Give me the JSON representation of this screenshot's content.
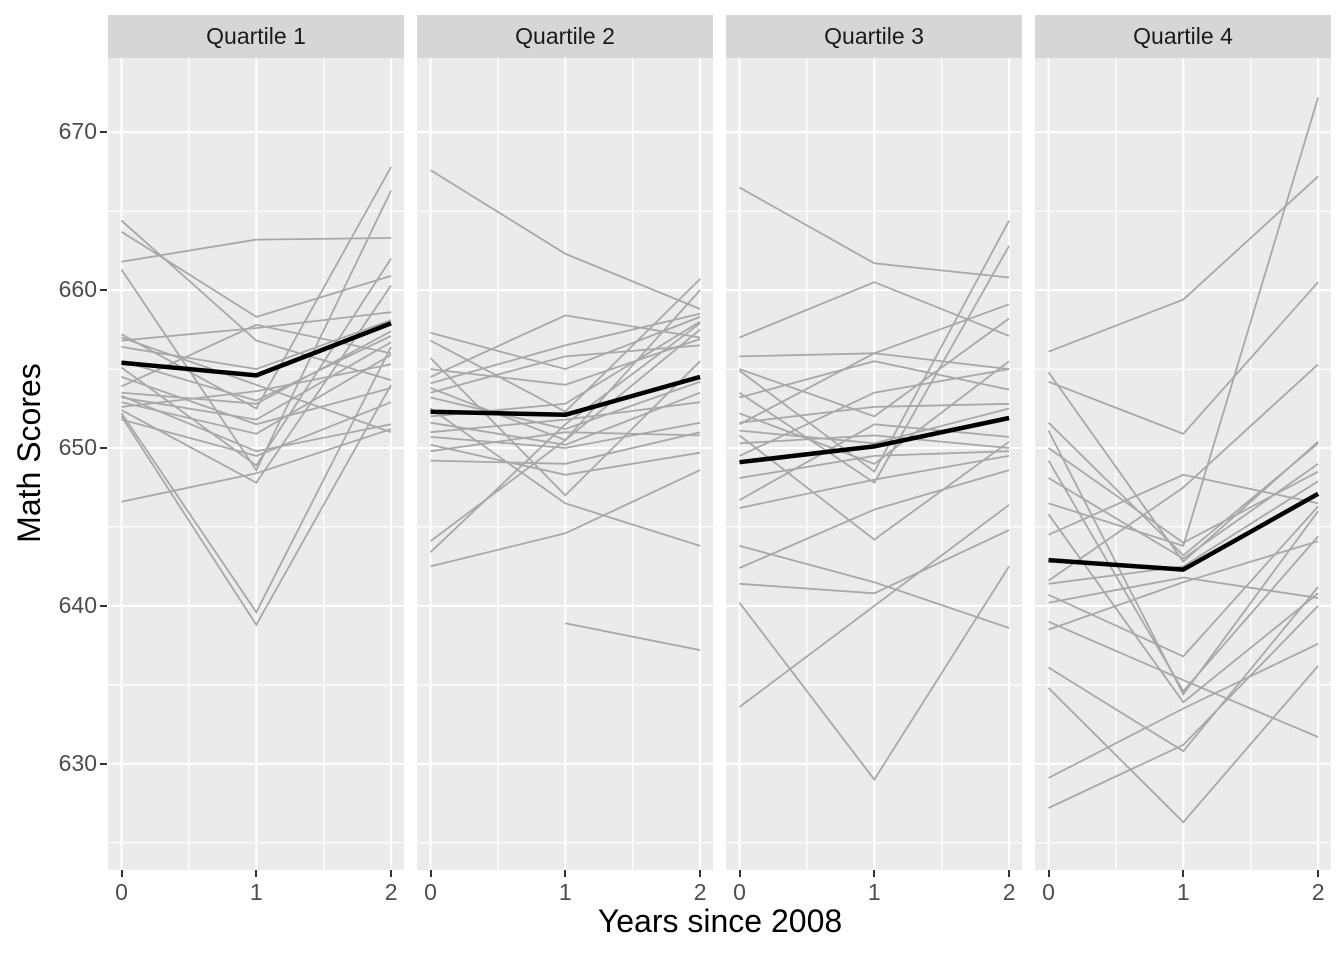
{
  "figure": {
    "background": "#ffffff",
    "panel_bg": "#ebebeb",
    "strip_bg": "#d6d6d6",
    "grid_color": "#ffffff",
    "trajectory_color": "#a8a8a8",
    "mean_color": "#000000",
    "tick_label_color": "#4d4d4d",
    "tick_mark_color": "#333333",
    "axis_title_color": "#000000"
  },
  "chart_data": {
    "type": "line",
    "title": "",
    "xlabel": "Years since 2008",
    "ylabel": "Math Scores",
    "x": [
      0,
      1,
      2
    ],
    "xticks": [
      "0",
      "1",
      "2"
    ],
    "yticks": [
      670,
      660,
      650,
      640,
      630
    ],
    "yticks_minor": [
      665,
      655,
      645,
      635,
      625
    ],
    "xticks_minor": [
      0.5,
      1.5
    ],
    "xlim": [
      -0.1,
      2.1
    ],
    "ylim": [
      623.5,
      674.8
    ],
    "grid": "white major and minor gridlines on gray panel",
    "legend_position": "none",
    "facets": [
      {
        "label": "Quartile 1",
        "mean": [
          655.4,
          654.6,
          657.9
        ],
        "lines": [
          [
            664.4,
            656.8,
            654.3
          ],
          [
            663.7,
            658.3,
            660.9
          ],
          [
            661.8,
            663.2,
            663.3
          ],
          [
            661.3,
            648.6,
            666.3
          ],
          [
            657.2,
            652.5,
            667.8
          ],
          [
            656.8,
            657.6,
            658.6
          ],
          [
            656.4,
            655.0,
            658.1
          ],
          [
            655.1,
            648.9,
            662.0
          ],
          [
            653.9,
            657.8,
            656.0
          ],
          [
            653.5,
            652.8,
            657.4
          ],
          [
            653.2,
            651.8,
            656.7
          ],
          [
            652.9,
            650.9,
            655.9
          ],
          [
            652.6,
            653.6,
            655.3
          ],
          [
            652.2,
            639.6,
            656.4
          ],
          [
            652.0,
            638.8,
            654.0
          ],
          [
            651.8,
            649.5,
            652.9
          ],
          [
            653.3,
            649.8,
            651.5
          ],
          [
            654.5,
            651.5,
            653.8
          ],
          [
            657.0,
            654.0,
            651.0
          ],
          [
            646.6,
            648.4,
            651.2
          ],
          [
            652.4,
            647.8,
            660.3
          ],
          [
            655.5,
            653.0,
            657.1
          ]
        ]
      },
      {
        "label": "Quartile 2",
        "mean": [
          652.3,
          652.1,
          654.5
        ],
        "lines": [
          [
            667.6,
            662.3,
            658.8
          ],
          [
            657.3,
            655.0,
            658.3
          ],
          [
            656.8,
            652.3,
            660.7
          ],
          [
            655.7,
            647.0,
            655.5
          ],
          [
            654.5,
            658.4,
            657.0
          ],
          [
            654.1,
            656.5,
            658.5
          ],
          [
            653.8,
            650.5,
            657.5
          ],
          [
            653.5,
            655.8,
            656.5
          ],
          [
            653.2,
            651.2,
            654.2
          ],
          [
            652.0,
            652.8,
            658.0
          ],
          [
            651.6,
            650.2,
            653.5
          ],
          [
            651.0,
            651.8,
            652.9
          ],
          [
            650.7,
            650.0,
            651.6
          ],
          [
            649.8,
            651.0,
            650.8
          ],
          [
            649.2,
            649.0,
            651.0
          ],
          [
            644.1,
            650.5,
            660.0
          ],
          [
            643.4,
            651.5,
            657.9
          ],
          [
            642.5,
            644.6,
            648.6
          ],
          [
            null,
            638.9,
            637.2
          ],
          [
            652.5,
            646.5,
            643.8
          ],
          [
            650.2,
            648.3,
            649.7
          ],
          [
            655.0,
            654.0,
            656.9
          ]
        ]
      },
      {
        "label": "Quartile 3",
        "mean": [
          649.1,
          650.1,
          651.9
        ],
        "lines": [
          [
            666.5,
            661.7,
            660.8
          ],
          [
            657.0,
            660.5,
            657.1
          ],
          [
            655.8,
            656.0,
            655.0
          ],
          [
            654.9,
            648.5,
            664.4
          ],
          [
            653.5,
            647.8,
            662.8
          ],
          [
            653.2,
            655.5,
            653.7
          ],
          [
            652.2,
            649.0,
            655.5
          ],
          [
            651.6,
            652.6,
            652.8
          ],
          [
            651.1,
            650.3,
            652.5
          ],
          [
            650.8,
            644.2,
            650.4
          ],
          [
            650.3,
            650.8,
            650.0
          ],
          [
            648.1,
            649.5,
            649.8
          ],
          [
            646.7,
            651.5,
            650.7
          ],
          [
            646.2,
            648.0,
            649.5
          ],
          [
            643.8,
            641.5,
            638.6
          ],
          [
            642.4,
            646.1,
            648.6
          ],
          [
            641.4,
            640.8,
            644.8
          ],
          [
            640.2,
            629.0,
            642.5
          ],
          [
            633.6,
            640.0,
            646.4
          ],
          [
            651.5,
            656.0,
            659.1
          ],
          [
            655.0,
            652.0,
            658.2
          ],
          [
            649.5,
            653.5,
            655.0
          ]
        ]
      },
      {
        "label": "Quartile 4",
        "mean": [
          642.9,
          642.3,
          647.1
        ],
        "lines": [
          [
            656.1,
            659.4,
            667.2
          ],
          [
            654.8,
            642.8,
            650.4
          ],
          [
            654.2,
            650.9,
            660.5
          ],
          [
            651.6,
            643.2,
            650.3
          ],
          [
            651.1,
            634.4,
            646.0
          ],
          [
            649.2,
            634.6,
            644.4
          ],
          [
            648.1,
            643.0,
            649.0
          ],
          [
            646.5,
            643.8,
            672.2
          ],
          [
            645.8,
            633.9,
            640.8
          ],
          [
            641.6,
            647.5,
            655.3
          ],
          [
            641.4,
            642.5,
            647.9
          ],
          [
            640.7,
            636.8,
            646.3
          ],
          [
            640.2,
            641.8,
            640.5
          ],
          [
            639.0,
            635.3,
            631.7
          ],
          [
            636.1,
            630.8,
            641.2
          ],
          [
            634.8,
            626.3,
            636.2
          ],
          [
            629.1,
            633.5,
            637.6
          ],
          [
            627.2,
            631.2,
            640.0
          ],
          [
            644.5,
            648.3,
            646.5
          ],
          [
            650.0,
            644.0,
            648.5
          ],
          [
            638.5,
            641.5,
            644.1
          ]
        ]
      }
    ]
  }
}
